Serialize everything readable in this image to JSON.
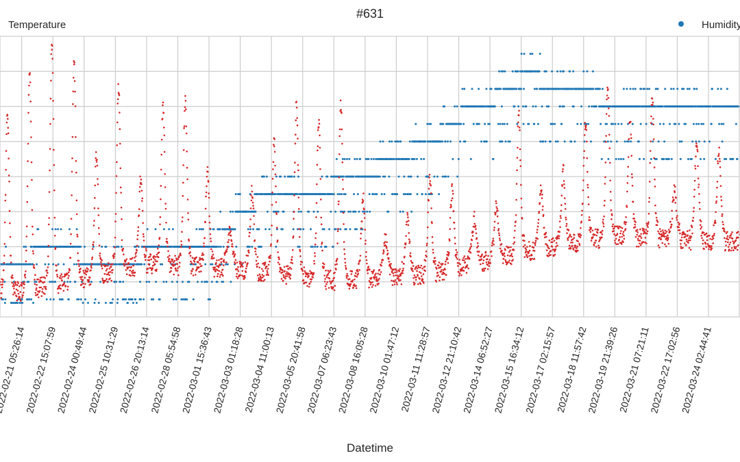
{
  "chart_data": {
    "type": "scatter",
    "title": "#631",
    "xlabel": "Datetime",
    "y_left_label": "Temperature",
    "x_start": "2022-02-20 06:00:00",
    "x_end": "2022-03-25 12:00:00",
    "xticks": [
      "2022-02-21 05:26:14",
      "2022-02-22 15:07:59",
      "2022-02-24 00:49:44",
      "2022-02-25 10:31:29",
      "2022-02-26 20:13:14",
      "2022-02-28 05:54:58",
      "2022-03-01 15:36:43",
      "2022-03-03 01:18:28",
      "2022-03-04 11:00:13",
      "2022-03-05 20:41:58",
      "2022-03-07 06:23:43",
      "2022-03-08 16:05:28",
      "2022-03-10 01:47:12",
      "2022-03-11 11:28:57",
      "2022-03-12 21:10:42",
      "2022-03-14 06:52:27",
      "2022-03-15 16:34:12",
      "2022-03-17 02:15:57",
      "2022-03-18 11:57:42",
      "2022-03-19 21:39:26",
      "2022-03-21 07:21:11",
      "2022-03-22 17:02:56",
      "2022-03-24 02:44:41"
    ],
    "y_tick_labels_visible": false,
    "grid": true,
    "legend": {
      "position": "top-right",
      "entries": [
        "Humidity"
      ]
    },
    "series": [
      {
        "name": "Temperature",
        "color": "#d62728",
        "marker": "dot",
        "mean": [
          [
            "2022-02-21 05:26:14",
            0.12
          ],
          [
            "2022-02-26 20:13:14",
            0.22
          ],
          [
            "2022-03-03 01:18:28",
            0.2
          ],
          [
            "2022-03-07 06:23:43",
            0.16
          ],
          [
            "2022-03-11 11:28:57",
            0.18
          ],
          [
            "2022-03-15 16:34:12",
            0.26
          ],
          [
            "2022-03-19 21:39:26",
            0.32
          ],
          [
            "2022-03-24 02:44:41",
            0.3
          ]
        ],
        "daily_peaks": [
          [
            "2022-02-20 14:00:00",
            0.72
          ],
          [
            "2022-02-21 14:00:00",
            0.88
          ],
          [
            "2022-02-22 14:00:00",
            0.97
          ],
          [
            "2022-02-23 14:00:00",
            0.9
          ],
          [
            "2022-02-24 14:00:00",
            0.58
          ],
          [
            "2022-02-25 14:00:00",
            0.82
          ],
          [
            "2022-02-26 14:00:00",
            0.5
          ],
          [
            "2022-02-27 14:00:00",
            0.75
          ],
          [
            "2022-02-28 14:00:00",
            0.78
          ],
          [
            "2022-03-01 14:00:00",
            0.52
          ],
          [
            "2022-03-02 14:00:00",
            0.3
          ],
          [
            "2022-03-03 14:00:00",
            0.45
          ],
          [
            "2022-03-04 14:00:00",
            0.62
          ],
          [
            "2022-03-05 14:00:00",
            0.75
          ],
          [
            "2022-03-06 14:00:00",
            0.7
          ],
          [
            "2022-03-07 14:00:00",
            0.76
          ],
          [
            "2022-03-08 14:00:00",
            0.42
          ],
          [
            "2022-03-09 14:00:00",
            0.28
          ],
          [
            "2022-03-10 14:00:00",
            0.35
          ],
          [
            "2022-03-11 14:00:00",
            0.5
          ],
          [
            "2022-03-12 14:00:00",
            0.45
          ],
          [
            "2022-03-13 14:00:00",
            0.35
          ],
          [
            "2022-03-14 14:00:00",
            0.4
          ],
          [
            "2022-03-15 14:00:00",
            0.72
          ],
          [
            "2022-03-16 14:00:00",
            0.46
          ],
          [
            "2022-03-17 14:00:00",
            0.52
          ],
          [
            "2022-03-18 14:00:00",
            0.7
          ],
          [
            "2022-03-19 14:00:00",
            0.82
          ],
          [
            "2022-03-20 14:00:00",
            0.7
          ],
          [
            "2022-03-21 14:00:00",
            0.78
          ],
          [
            "2022-03-22 14:00:00",
            0.45
          ],
          [
            "2022-03-23 14:00:00",
            0.62
          ],
          [
            "2022-03-24 14:00:00",
            0.6
          ]
        ]
      },
      {
        "name": "Humidity",
        "color": "#1f77b4",
        "marker": "dot",
        "levels": [
          [
            "2022-02-20 12:00:00",
            0.2
          ],
          [
            "2022-02-22 12:00:00",
            0.23
          ],
          [
            "2022-02-26 00:00:00",
            0.2
          ],
          [
            "2022-02-28 00:00:00",
            0.26
          ],
          [
            "2022-03-02 00:00:00",
            0.28
          ],
          [
            "2022-03-03 12:00:00",
            0.4
          ],
          [
            "2022-03-05 00:00:00",
            0.44
          ],
          [
            "2022-03-07 00:00:00",
            0.46
          ],
          [
            "2022-03-09 12:00:00",
            0.54
          ],
          [
            "2022-03-11 12:00:00",
            0.62
          ],
          [
            "2022-03-13 00:00:00",
            0.72
          ],
          [
            "2022-03-14 12:00:00",
            0.78
          ],
          [
            "2022-03-16 00:00:00",
            0.86
          ],
          [
            "2022-03-18 00:00:00",
            0.8
          ],
          [
            "2022-03-20 00:00:00",
            0.76
          ],
          [
            "2022-03-22 00:00:00",
            0.74
          ],
          [
            "2022-03-23 12:00:00",
            0.78
          ],
          [
            "2022-03-24 12:00:00",
            0.75
          ]
        ]
      }
    ]
  }
}
